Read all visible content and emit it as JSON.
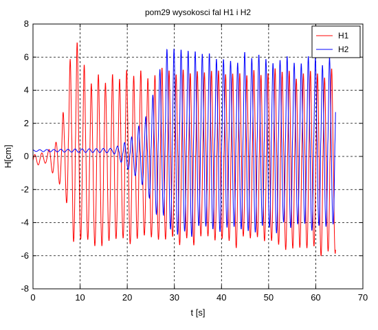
{
  "chart_data": {
    "type": "line",
    "title": "pom29  wysokosci fal H1 i H2",
    "xlabel": "t [s]",
    "ylabel": "H[cm]",
    "xlim": [
      0,
      70
    ],
    "ylim": [
      -8,
      8
    ],
    "xticks": [
      "0",
      "10",
      "20",
      "30",
      "40",
      "50",
      "60",
      "70"
    ],
    "yticks": [
      "-8",
      "-6",
      "-4",
      "-2",
      "0",
      "2",
      "4",
      "6",
      "8"
    ],
    "grid": true,
    "legend_position": "top-right",
    "series": [
      {
        "name": "H1",
        "color": "#ff0000",
        "t_start": 0,
        "t_end": 64.2,
        "onset_time": 6.0,
        "envelope": {
          "t": [
            0,
            3.0,
            5.0,
            6.0,
            7.5,
            8.5,
            12,
            20,
            26,
            35,
            45,
            55,
            64.2
          ],
          "high": [
            0.1,
            0.3,
            1.0,
            2.0,
            5.0,
            7.8,
            5.0,
            5.3,
            5.4,
            5.4,
            5.5,
            5.5,
            5.4
          ],
          "low": [
            -0.6,
            -0.4,
            -1.5,
            -2.0,
            -3.2,
            -5.8,
            -5.6,
            -5.4,
            -5.4,
            -5.5,
            -5.6,
            -5.8,
            -6.2
          ]
        }
      },
      {
        "name": "H2",
        "color": "#0000ff",
        "t_start": 0,
        "t_end": 64.2,
        "onset_time": 18.0,
        "envelope": {
          "t": [
            0,
            17,
            20,
            24,
            26,
            28,
            30,
            40,
            50,
            55,
            64.2
          ],
          "high": [
            0.4,
            0.5,
            1.0,
            2.5,
            4.5,
            7.2,
            6.8,
            6.4,
            6.3,
            6.4,
            6.0
          ],
          "low": [
            0.3,
            0.2,
            -0.8,
            -2.0,
            -3.5,
            -4.5,
            -5.0,
            -4.8,
            -4.7,
            -4.8,
            -4.6
          ]
        }
      }
    ]
  }
}
